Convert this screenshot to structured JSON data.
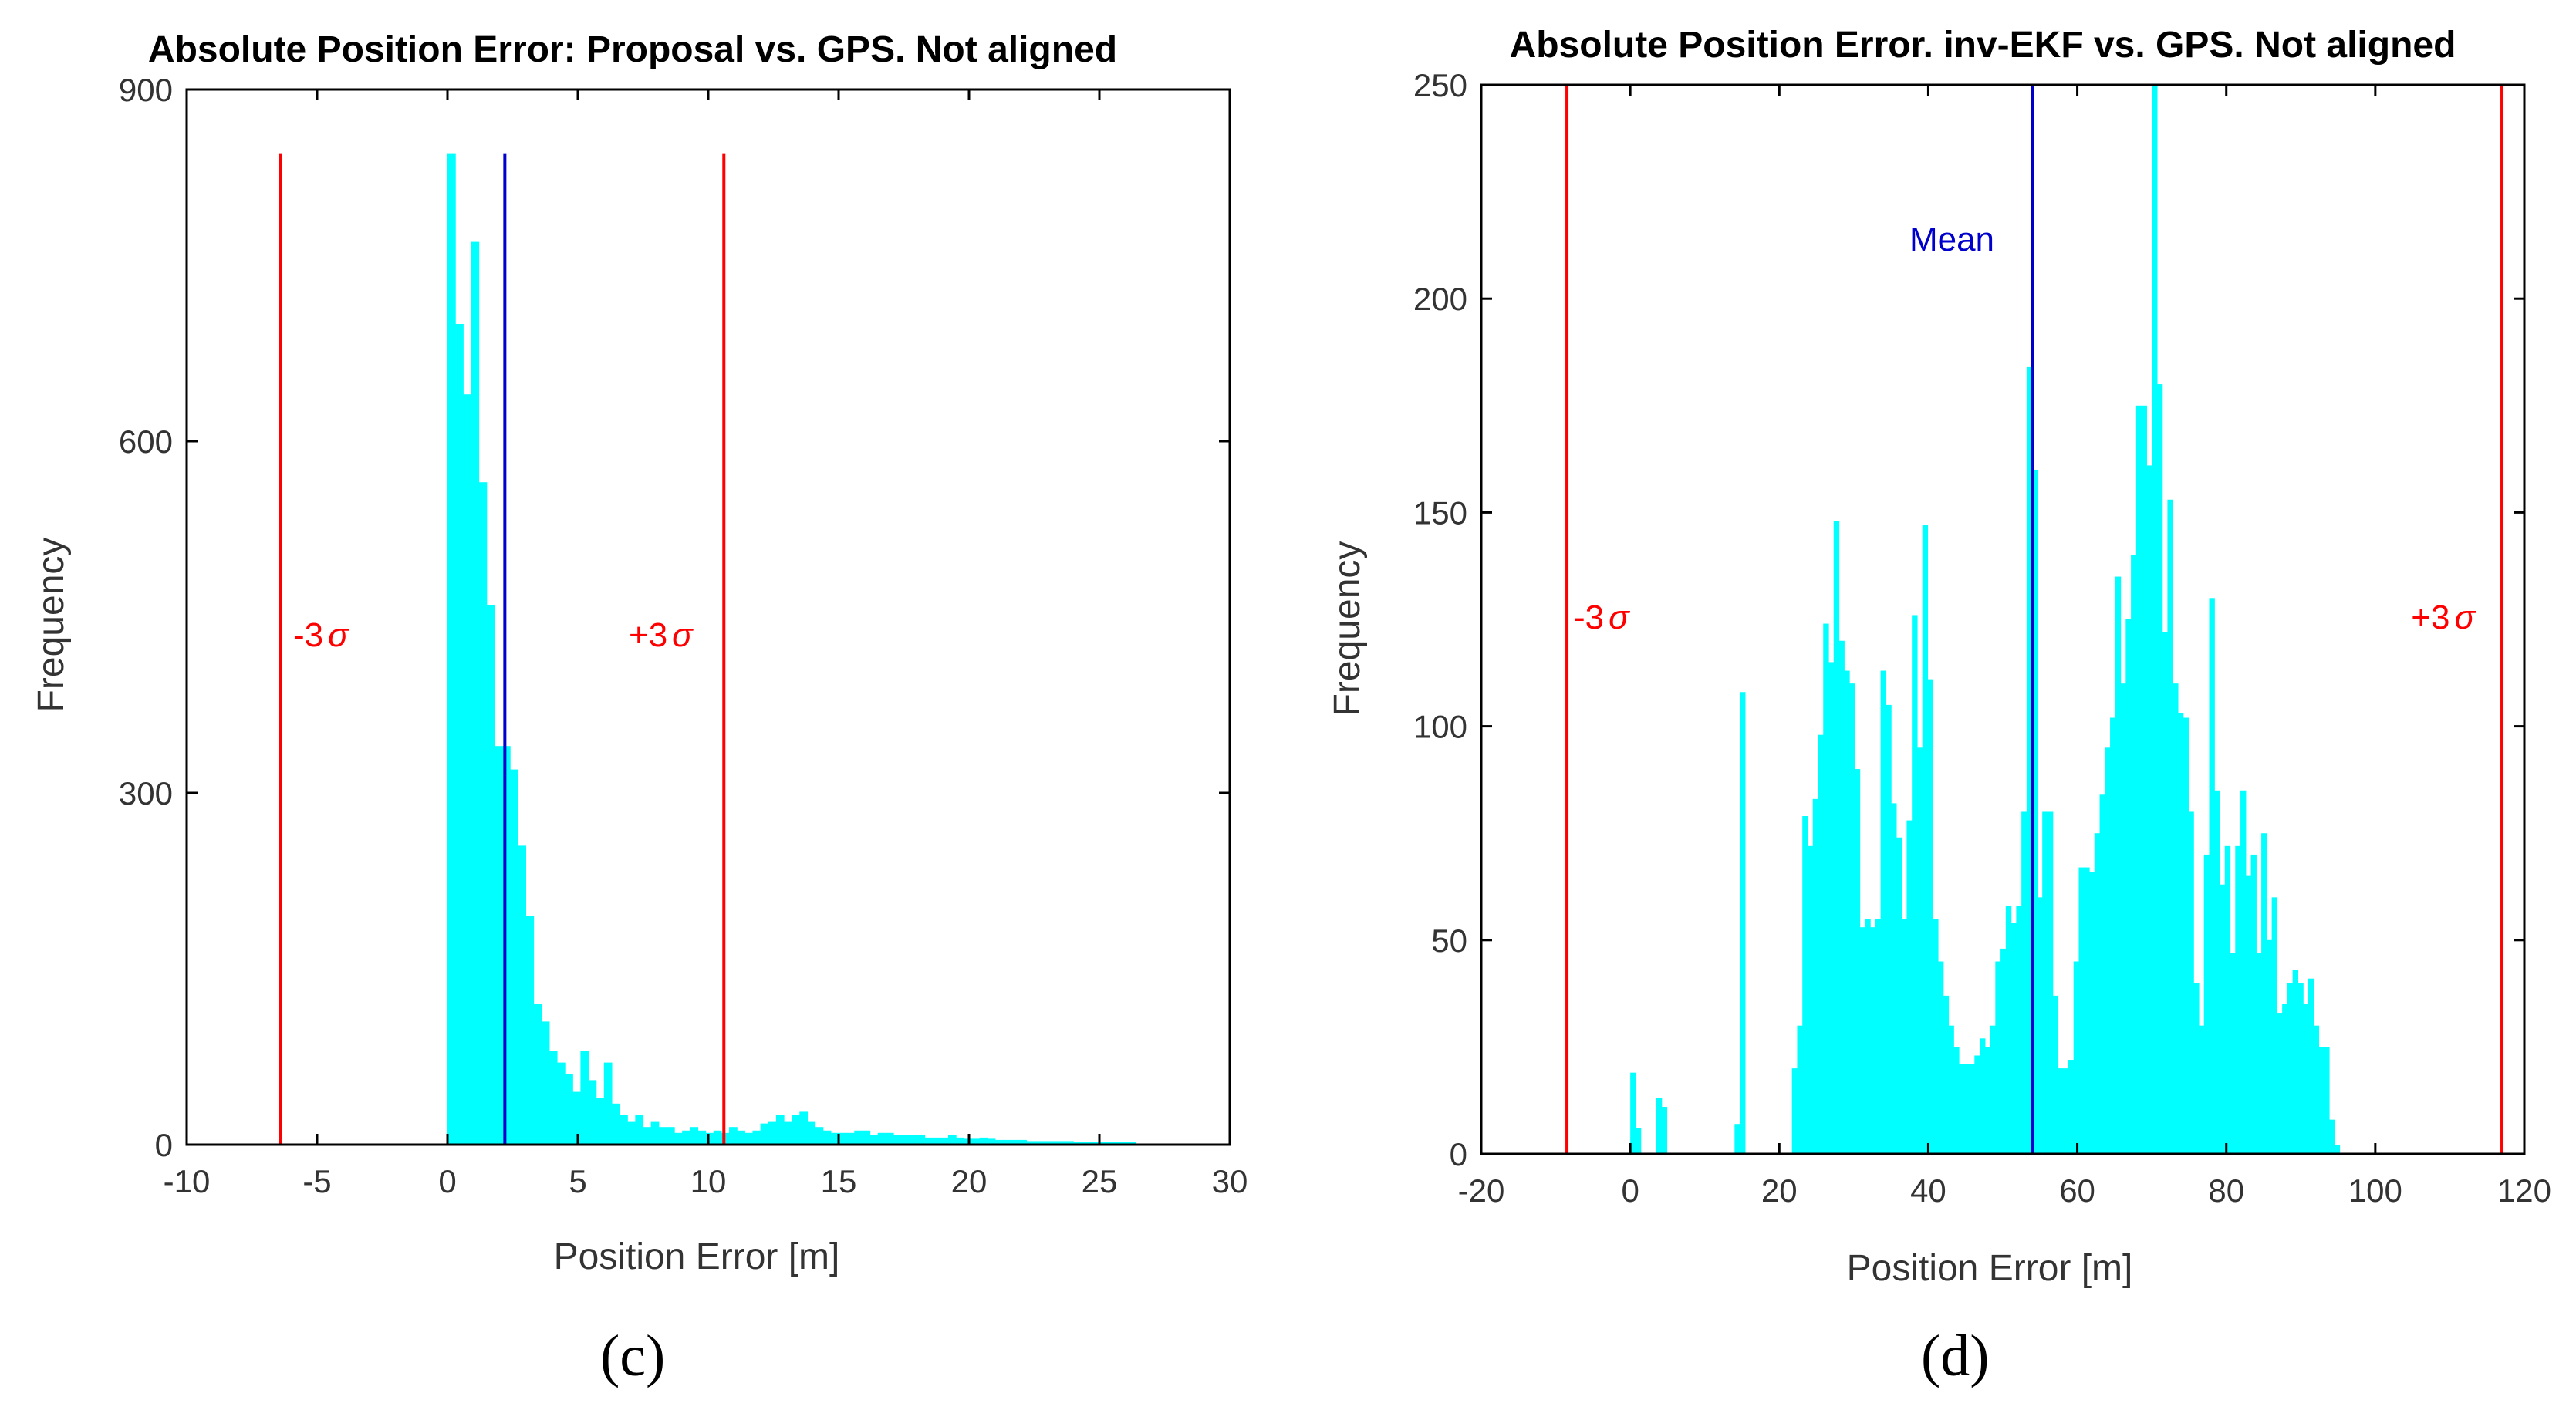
{
  "chart_data": [
    {
      "type": "bar",
      "subtype": "histogram",
      "panel_label": "(c)",
      "title": "Absolute Position Error: Proposal vs. GPS. Not aligned",
      "xlabel": "Position Error [m]",
      "ylabel": "Frequency",
      "xlim": [
        -10,
        30
      ],
      "ylim": [
        0,
        900
      ],
      "xticks": [
        -10,
        -5,
        0,
        5,
        10,
        15,
        20,
        25,
        30
      ],
      "yticks": [
        0,
        300,
        600,
        900
      ],
      "grid": false,
      "bar_color": "#00ffff",
      "bin_width": 0.3,
      "bin_start": 0,
      "values": [
        845,
        700,
        640,
        770,
        565,
        460,
        340,
        340,
        320,
        255,
        195,
        120,
        105,
        80,
        70,
        60,
        45,
        80,
        55,
        40,
        70,
        35,
        25,
        20,
        25,
        15,
        20,
        15,
        15,
        10,
        12,
        15,
        12,
        10,
        12,
        10,
        15,
        12,
        10,
        12,
        18,
        20,
        25,
        20,
        25,
        28,
        20,
        15,
        12,
        10,
        10,
        10,
        12,
        12,
        8,
        10,
        10,
        8,
        8,
        8,
        8,
        6,
        6,
        6,
        8,
        6,
        5,
        5,
        6,
        5,
        4,
        4,
        4,
        4,
        3,
        3,
        3,
        3,
        3,
        3,
        2,
        2,
        2,
        2,
        2,
        2,
        2,
        2
      ],
      "vlines": [
        {
          "name": "-3sigma",
          "x": -6.4,
          "color": "#ff0000",
          "label": "-3",
          "symbol": "σ"
        },
        {
          "name": "mean",
          "x": 2.2,
          "color": "#0000cc"
        },
        {
          "name": "+3sigma",
          "x": 10.6,
          "color": "#ff0000",
          "label": "+3",
          "symbol": "σ"
        }
      ],
      "vline_top": 845
    },
    {
      "type": "bar",
      "subtype": "histogram",
      "panel_label": "(d)",
      "title": "Absolute Position Error. inv-EKF vs. GPS. Not aligned",
      "xlabel": "Position Error [m]",
      "ylabel": "Frequency",
      "xlim": [
        -20,
        120
      ],
      "ylim": [
        0,
        250
      ],
      "xticks": [
        -20,
        0,
        20,
        40,
        60,
        80,
        100,
        120
      ],
      "yticks": [
        0,
        50,
        100,
        150,
        200,
        250
      ],
      "grid": false,
      "bar_color": "#00ffff",
      "bin_width": 0.7,
      "bin_start": 0,
      "values": [
        19,
        6,
        0,
        0,
        0,
        13,
        11,
        0,
        0,
        0,
        0,
        0,
        0,
        0,
        0,
        0,
        0,
        0,
        0,
        0,
        7,
        108,
        0,
        0,
        0,
        0,
        0,
        0,
        0,
        0,
        0,
        20,
        30,
        79,
        72,
        83,
        98,
        124,
        115,
        148,
        120,
        113,
        110,
        90,
        53,
        55,
        53,
        55,
        113,
        105,
        82,
        74,
        55,
        78,
        126,
        95,
        147,
        111,
        55,
        45,
        37,
        30,
        25,
        21,
        21,
        21,
        23,
        27,
        25,
        30,
        45,
        48,
        58,
        54,
        58,
        80,
        184,
        160,
        60,
        80,
        80,
        37,
        20,
        20,
        22,
        45,
        67,
        67,
        66,
        75,
        84,
        95,
        102,
        135,
        110,
        125,
        140,
        175,
        175,
        161,
        250,
        180,
        122,
        153,
        110,
        103,
        102,
        80,
        40,
        30,
        70,
        130,
        85,
        63,
        72,
        47,
        72,
        85,
        65,
        70,
        47,
        75,
        50,
        60,
        33,
        35,
        40,
        43,
        40,
        35,
        41,
        30,
        25,
        25,
        8,
        2
      ],
      "vlines": [
        {
          "name": "-3sigma",
          "x": -8.5,
          "color": "#ff0000",
          "label": "-3",
          "symbol": "σ"
        },
        {
          "name": "mean",
          "x": 54,
          "color": "#0000cc",
          "label": "Mean"
        },
        {
          "name": "+3sigma",
          "x": 117,
          "color": "#ff0000",
          "label": "+3",
          "symbol": "σ"
        }
      ],
      "vline_top": 250
    }
  ]
}
